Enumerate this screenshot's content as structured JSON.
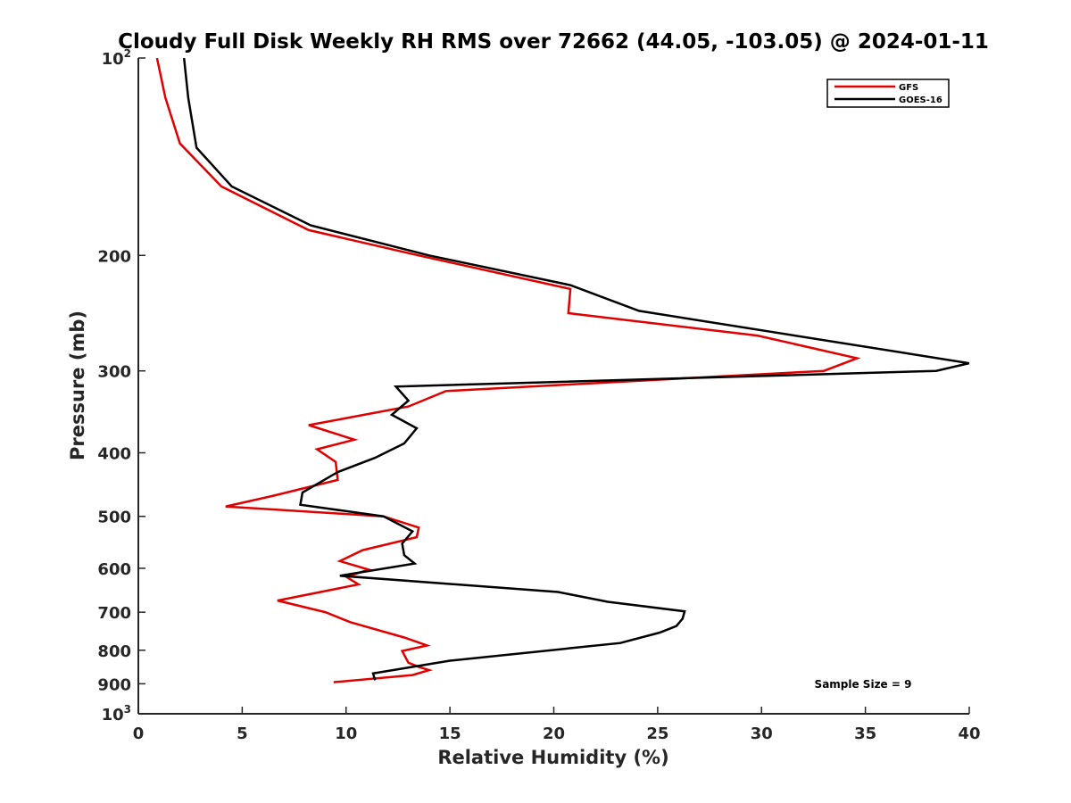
{
  "chart_data": {
    "type": "line",
    "title": "Cloudy Full Disk Weekly RH RMS over 72662 (44.05, -103.05) @ 2024-01-11",
    "xlabel": "Relative Humidity (%)",
    "ylabel": "Pressure (mb)",
    "xlim": [
      0,
      40
    ],
    "ylim": [
      100,
      1000
    ],
    "y_scale": "log",
    "y_reversed": true,
    "grid": false,
    "legend_position": "top-right",
    "x_ticks": [
      "0",
      "5",
      "10",
      "15",
      "20",
      "25",
      "30",
      "35",
      "40"
    ],
    "y_ticks": [
      {
        "value": 100,
        "base": "10",
        "exp": "2"
      },
      {
        "value": 200,
        "label": "200"
      },
      {
        "value": 300,
        "label": "300"
      },
      {
        "value": 400,
        "label": "400"
      },
      {
        "value": 500,
        "label": "500"
      },
      {
        "value": 600,
        "label": "600"
      },
      {
        "value": 700,
        "label": "700"
      },
      {
        "value": 800,
        "label": "800"
      },
      {
        "value": 900,
        "label": "900"
      },
      {
        "value": 1000,
        "base": "10",
        "exp": "3"
      }
    ],
    "series": [
      {
        "name": "GFS",
        "color": "#e00000",
        "points": [
          [
            0.9,
            100
          ],
          [
            1.3,
            115
          ],
          [
            2.0,
            135
          ],
          [
            4.0,
            157
          ],
          [
            8.2,
            183
          ],
          [
            13.5,
            200
          ],
          [
            20.8,
            225
          ],
          [
            20.7,
            245
          ],
          [
            29.8,
            265
          ],
          [
            34.6,
            287
          ],
          [
            33.0,
            300
          ],
          [
            14.8,
            322
          ],
          [
            13.0,
            340
          ],
          [
            8.2,
            363
          ],
          [
            10.4,
            382
          ],
          [
            8.6,
            395
          ],
          [
            9.5,
            413
          ],
          [
            9.6,
            440
          ],
          [
            6.5,
            465
          ],
          [
            4.2,
            483
          ],
          [
            11.8,
            500
          ],
          [
            13.5,
            520
          ],
          [
            13.4,
            538
          ],
          [
            10.8,
            563
          ],
          [
            9.7,
            585
          ],
          [
            11.1,
            603
          ],
          [
            10.0,
            618
          ],
          [
            10.6,
            635
          ],
          [
            6.7,
            672
          ],
          [
            9.0,
            700
          ],
          [
            10.2,
            725
          ],
          [
            12.8,
            765
          ],
          [
            13.9,
            787
          ],
          [
            12.7,
            802
          ],
          [
            13.0,
            836
          ],
          [
            13.5,
            848
          ],
          [
            14.0,
            858
          ],
          [
            13.2,
            873
          ],
          [
            9.4,
            895
          ]
        ]
      },
      {
        "name": "GOES-16",
        "color": "#000000",
        "points": [
          [
            2.2,
            100
          ],
          [
            2.4,
            115
          ],
          [
            2.8,
            137
          ],
          [
            4.5,
            157
          ],
          [
            8.3,
            180
          ],
          [
            14.0,
            200
          ],
          [
            20.8,
            222
          ],
          [
            24.1,
            243
          ],
          [
            40.0,
            292
          ],
          [
            38.4,
            300
          ],
          [
            12.4,
            317
          ],
          [
            13.0,
            333
          ],
          [
            12.2,
            350
          ],
          [
            13.4,
            367
          ],
          [
            12.8,
            387
          ],
          [
            11.4,
            407
          ],
          [
            9.6,
            428
          ],
          [
            7.9,
            460
          ],
          [
            7.8,
            480
          ],
          [
            11.8,
            500
          ],
          [
            13.2,
            527
          ],
          [
            12.7,
            550
          ],
          [
            12.8,
            573
          ],
          [
            13.3,
            590
          ],
          [
            9.7,
            616
          ],
          [
            20.2,
            652
          ],
          [
            22.6,
            675
          ],
          [
            26.3,
            698
          ],
          [
            26.2,
            716
          ],
          [
            25.9,
            735
          ],
          [
            25.1,
            752
          ],
          [
            23.2,
            780
          ],
          [
            15.0,
            830
          ],
          [
            11.3,
            868
          ],
          [
            11.4,
            889
          ]
        ]
      }
    ],
    "legend": [
      {
        "label": "GFS",
        "color": "#e00000"
      },
      {
        "label": "GOES-16",
        "color": "#000000"
      }
    ],
    "annotation": "Sample Size = 9"
  }
}
